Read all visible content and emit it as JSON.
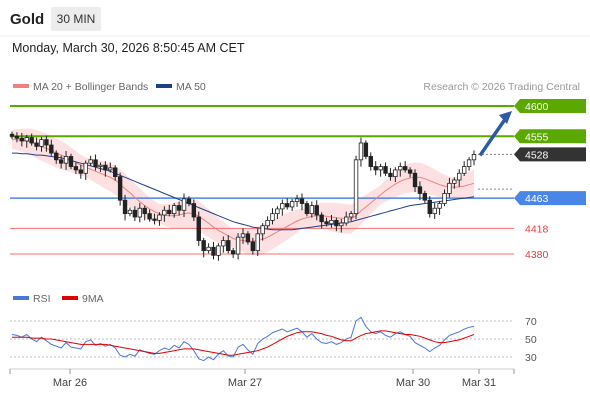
{
  "header": {
    "title": "Gold",
    "timeframe": "30 MIN",
    "datetime": "Monday, March 30, 2026 8:50:45 AM CET"
  },
  "legend": {
    "ma20_label": "MA 20 + Bollinger Bands",
    "ma50_label": "MA 50",
    "copyright": "Research © 2026 Trading Central",
    "rsi_label": "RSI",
    "rsi_ma_label": "9MA"
  },
  "colors": {
    "resistance": "#5aa800",
    "support": "#4a86e8",
    "level_red": "#f07070",
    "current": "#333333",
    "arrow": "#2a5aa8",
    "ma20": "#f08080",
    "ma50": "#1f3f8a",
    "bollinger_fill": "#fde0e2",
    "rsi": "#4a78d8",
    "rsi_ma": "#e00000"
  },
  "chart_data": {
    "type": "candlestick",
    "instrument": "Gold",
    "timeframe": "30 MIN",
    "x_tick_labels": [
      "Mar 26",
      "Mar 27",
      "Mar 30",
      "Mar 31"
    ],
    "ylim": [
      4340,
      4620
    ],
    "levels": [
      {
        "value": 4600,
        "label": "4600",
        "kind": "resistance"
      },
      {
        "value": 4555,
        "label": "4555",
        "kind": "resistance"
      },
      {
        "value": 4528,
        "label": "4528",
        "kind": "current"
      },
      {
        "value": 4463,
        "label": "4463",
        "kind": "support"
      },
      {
        "value": 4418,
        "label": "4418",
        "kind": "support"
      },
      {
        "value": 4380,
        "label": "4380",
        "kind": "support"
      }
    ],
    "close_approx": [
      4555,
      4552,
      4548,
      4553,
      4545,
      4540,
      4550,
      4542,
      4530,
      4520,
      4515,
      4525,
      4510,
      4505,
      4500,
      4515,
      4520,
      4510,
      4512,
      4505,
      4508,
      4495,
      4460,
      4440,
      4445,
      4435,
      4448,
      4440,
      4432,
      4430,
      4438,
      4445,
      4440,
      4452,
      4445,
      4462,
      4455,
      4435,
      4400,
      4385,
      4390,
      4378,
      4392,
      4400,
      4385,
      4380,
      4405,
      4410,
      4398,
      4385,
      4410,
      4422,
      4430,
      4440,
      4447,
      4455,
      4450,
      4458,
      4462,
      4455,
      4440,
      4452,
      4438,
      4428,
      4425,
      4430,
      4422,
      4426,
      4435,
      4440,
      4520,
      4545,
      4525,
      4510,
      4505,
      4510,
      4500,
      4495,
      4505,
      4510,
      4505,
      4500,
      4480,
      4470,
      4460,
      4440,
      4448,
      4455,
      4470,
      4485,
      4490,
      4500,
      4510,
      4520,
      4528
    ],
    "ma20_approx": [
      4550,
      4550,
      4549,
      4548,
      4546,
      4543,
      4540,
      4537,
      4534,
      4530,
      4527,
      4524,
      4520,
      4516,
      4512,
      4509,
      4506,
      4503,
      4500,
      4497,
      4494,
      4490,
      4484,
      4477,
      4471,
      4464,
      4458,
      4452,
      4447,
      4443,
      4440,
      4438,
      4437,
      4437,
      4438,
      4440,
      4441,
      4440,
      4436,
      4431,
      4426,
      4420,
      4415,
      4411,
      4407,
      4403,
      4401,
      4400,
      4399,
      4399,
      4400,
      4402,
      4405,
      4409,
      4413,
      4417,
      4421,
      4425,
      4429,
      4432,
      4434,
      4436,
      4437,
      4437,
      4436,
      4435,
      4434,
      4433,
      4432,
      4432,
      4437,
      4444,
      4450,
      4456,
      4462,
      4468,
      4474,
      4479,
      4484,
      4488,
      4491,
      4493,
      4494,
      4494,
      4492,
      4489,
      4486,
      4483,
      4481,
      4480,
      4479,
      4480,
      4481,
      4483,
      4485
    ],
    "ma50_approx": [
      4530,
      4530,
      4529,
      4529,
      4528,
      4527,
      4527,
      4526,
      4525,
      4524,
      4523,
      4521,
      4519,
      4517,
      4515,
      4513,
      4511,
      4509,
      4507,
      4505,
      4503,
      4500,
      4497,
      4494,
      4491,
      4488,
      4485,
      4482,
      4479,
      4476,
      4473,
      4470,
      4467,
      4464,
      4461,
      4458,
      4455,
      4452,
      4449,
      4446,
      4443,
      4440,
      4437,
      4434,
      4431,
      4428,
      4426,
      4424,
      4422,
      4420,
      4419,
      4418,
      4417,
      4416,
      4416,
      4416,
      4416,
      4416,
      4417,
      4418,
      4419,
      4420,
      4421,
      4422,
      4423,
      4424,
      4425,
      4426,
      4427,
      4428,
      4430,
      4432,
      4434,
      4436,
      4438,
      4440,
      4442,
      4444,
      4446,
      4448,
      4450,
      4452,
      4453,
      4454,
      4455,
      4456,
      4457,
      4458,
      4459,
      4460,
      4461,
      4462,
      4463,
      4464,
      4465
    ],
    "rsi": {
      "ylim": [
        20,
        80
      ],
      "y_tick_labels": [
        "70",
        "50",
        "30"
      ],
      "levels": [
        70,
        50,
        30
      ],
      "rsi_approx": [
        55,
        54,
        52,
        55,
        50,
        47,
        52,
        48,
        44,
        42,
        40,
        46,
        41,
        40,
        39,
        47,
        49,
        43,
        45,
        42,
        44,
        40,
        32,
        30,
        33,
        31,
        38,
        36,
        34,
        33,
        37,
        40,
        38,
        43,
        40,
        47,
        44,
        37,
        28,
        26,
        30,
        27,
        33,
        37,
        31,
        30,
        41,
        44,
        38,
        33,
        45,
        50,
        53,
        57,
        59,
        61,
        58,
        60,
        62,
        58,
        52,
        56,
        50,
        46,
        45,
        47,
        44,
        46,
        50,
        52,
        70,
        74,
        64,
        58,
        56,
        58,
        54,
        52,
        56,
        58,
        55,
        53,
        46,
        43,
        40,
        36,
        40,
        43,
        49,
        54,
        56,
        58,
        61,
        63,
        64
      ],
      "ma9_approx": [
        52,
        52,
        52,
        52,
        51,
        51,
        51,
        50,
        50,
        49,
        48,
        47,
        46,
        45,
        44,
        44,
        44,
        44,
        44,
        44,
        43,
        42,
        41,
        40,
        39,
        38,
        37,
        36,
        35,
        34,
        34,
        35,
        36,
        37,
        38,
        39,
        39,
        39,
        38,
        37,
        36,
        35,
        34,
        33,
        32,
        32,
        33,
        34,
        35,
        36,
        37,
        39,
        41,
        44,
        47,
        50,
        53,
        55,
        57,
        58,
        58,
        58,
        57,
        56,
        54,
        53,
        51,
        49,
        48,
        48,
        51,
        54,
        56,
        57,
        58,
        59,
        59,
        58,
        57,
        56,
        55,
        55,
        54,
        53,
        51,
        49,
        47,
        46,
        46,
        47,
        48,
        49,
        51,
        53,
        55
      ]
    }
  }
}
